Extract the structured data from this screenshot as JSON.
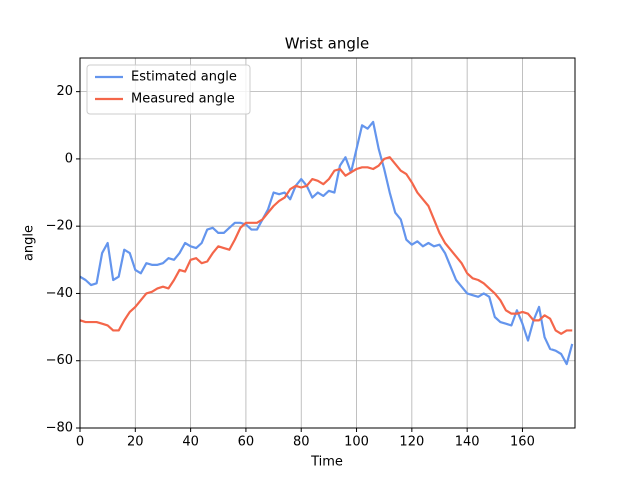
{
  "chart_data": {
    "type": "line",
    "title": "Wrist angle",
    "x_label": "Time",
    "y_label": "angle",
    "x": [
      0,
      2,
      4,
      6,
      8,
      10,
      12,
      14,
      16,
      18,
      20,
      22,
      24,
      26,
      28,
      30,
      32,
      34,
      36,
      38,
      40,
      42,
      44,
      46,
      48,
      50,
      52,
      54,
      56,
      58,
      60,
      62,
      64,
      66,
      68,
      70,
      72,
      74,
      76,
      78,
      80,
      82,
      84,
      86,
      88,
      90,
      92,
      94,
      96,
      98,
      100,
      102,
      104,
      106,
      108,
      110,
      112,
      114,
      116,
      118,
      120,
      122,
      124,
      126,
      128,
      130,
      132,
      134,
      136,
      138,
      140,
      142,
      144,
      146,
      148,
      150,
      152,
      154,
      156,
      158,
      160,
      162,
      164,
      166,
      168,
      170,
      172,
      174,
      176,
      178
    ],
    "series": [
      {
        "name": "Estimated angle",
        "color": "#6495ed",
        "values": [
          -35,
          -36,
          -37.5,
          -37,
          -28,
          -25,
          -36,
          -35,
          -27,
          -28,
          -33,
          -34,
          -31,
          -31.5,
          -31.5,
          -31,
          -29.5,
          -30,
          -28,
          -25,
          -26,
          -26.5,
          -25,
          -21,
          -20.5,
          -22,
          -22,
          -20.5,
          -19,
          -19,
          -19.5,
          -21,
          -21,
          -18,
          -15,
          -10,
          -10.5,
          -10,
          -12,
          -8,
          -6,
          -8,
          -11.5,
          -10,
          -11,
          -9.5,
          -10,
          -2,
          0.5,
          -4,
          3,
          10,
          9,
          11,
          3,
          -3,
          -10,
          -16,
          -18,
          -24,
          -25.5,
          -24.5,
          -26,
          -25,
          -26,
          -25.5,
          -28,
          -32,
          -36,
          -38,
          -40,
          -40.5,
          -41,
          -40,
          -41,
          -47,
          -48.5,
          -49,
          -49.5,
          -45,
          -49,
          -54,
          -48,
          -44,
          -53,
          -56.5,
          -57,
          -58,
          -61,
          -55
        ]
      },
      {
        "name": "Measured angle",
        "color": "#f4664a",
        "values": [
          -48,
          -48.5,
          -48.5,
          -48.5,
          -49,
          -49.5,
          -51,
          -51,
          -48,
          -45.5,
          -44,
          -42,
          -40,
          -39.5,
          -38.5,
          -38,
          -38.5,
          -36,
          -33,
          -33.5,
          -30,
          -29.5,
          -31,
          -30.5,
          -28,
          -26,
          -26.5,
          -27,
          -24,
          -20.5,
          -19,
          -19,
          -19,
          -18,
          -16,
          -14,
          -12.5,
          -11.5,
          -9,
          -8,
          -8.5,
          -8,
          -6,
          -6.5,
          -7.5,
          -6,
          -3.5,
          -3,
          -5,
          -4,
          -3,
          -2.5,
          -2.5,
          -3,
          -2,
          0,
          0.5,
          -1.5,
          -3.5,
          -4.5,
          -7,
          -10,
          -12,
          -14,
          -18,
          -22,
          -25,
          -27,
          -29,
          -31,
          -34,
          -35.5,
          -36,
          -37,
          -38.5,
          -40,
          -42,
          -45,
          -46,
          -46,
          -45.5,
          -46,
          -48,
          -48,
          -46.5,
          -47.5,
          -51,
          -52,
          -51,
          -51
        ]
      }
    ],
    "xlim": [
      0,
      179
    ],
    "ylim": [
      -80,
      30
    ],
    "xticks": [
      0,
      20,
      40,
      60,
      80,
      100,
      120,
      140,
      160
    ],
    "yticks": [
      {
        "value": -80,
        "label": "−80"
      },
      {
        "value": -60,
        "label": "−60"
      },
      {
        "value": -40,
        "label": "−40"
      },
      {
        "value": -20,
        "label": "−20"
      },
      0,
      20
    ],
    "grid": true,
    "legend": "upper left"
  }
}
